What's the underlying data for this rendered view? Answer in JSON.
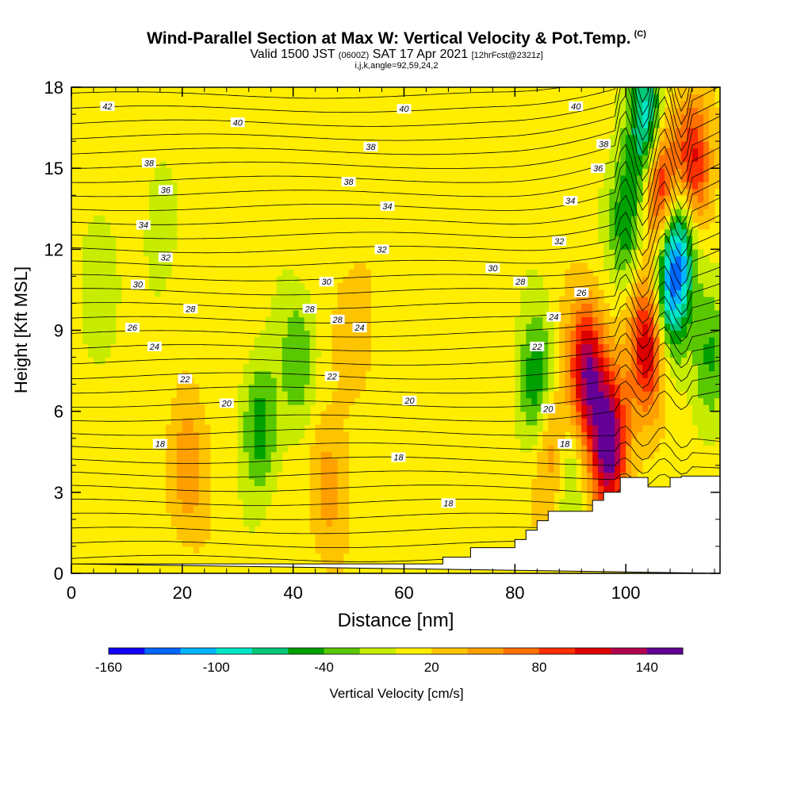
{
  "titles": {
    "main": "Wind-Parallel Section at Max W: Vertical Velocity & Pot.Temp.",
    "main_mark": "(C)",
    "valid_a": "Valid 1500 JST",
    "valid_b": "(0600Z)",
    "valid_c": "SAT 17 Apr 2021",
    "valid_d": "[12hrFcst@2321z]",
    "params": "i,j,k,angle=92,59,24,2"
  },
  "chart_data": {
    "type": "heatmap",
    "xlabel": "Distance [nm]",
    "ylabel": "Height [Kft MSL]",
    "xlim": [
      0,
      117
    ],
    "ylim": [
      0,
      18
    ],
    "x_ticks": [
      "0",
      "20",
      "40",
      "60",
      "80",
      "100"
    ],
    "y_ticks": [
      "0",
      "3",
      "6",
      "9",
      "12",
      "15",
      "18"
    ],
    "x_tick_values": [
      0,
      20,
      40,
      60,
      80,
      100
    ],
    "y_tick_values": [
      0,
      3,
      6,
      9,
      12,
      15,
      18
    ],
    "colorbar": {
      "label": "Vertical Velocity [cm/s]",
      "tick_labels": [
        "-160",
        "-100",
        "-40",
        "20",
        "80",
        "140"
      ],
      "tick_values": [
        -160,
        -100,
        -40,
        20,
        80,
        140
      ],
      "range": [
        -160,
        160
      ],
      "colors": [
        "#1200ff",
        "#0066ff",
        "#00b4ff",
        "#00e6c8",
        "#00c878",
        "#00a000",
        "#5ac800",
        "#c8ec00",
        "#ffee00",
        "#ffc400",
        "#ffa000",
        "#ff7000",
        "#ff3000",
        "#dc0000",
        "#b40050",
        "#640096"
      ]
    },
    "background_value": 10,
    "updraft_cores": [
      {
        "x": 21,
        "y": 3.8,
        "value": 50
      },
      {
        "x": 46,
        "y": 3.2,
        "value": 40
      },
      {
        "x": 50,
        "y": 9.0,
        "value": 30
      },
      {
        "x": 87,
        "y": 4.5,
        "value": 80
      },
      {
        "x": 93,
        "y": 7.5,
        "value": 130
      },
      {
        "x": 97,
        "y": 4.8,
        "value": 150
      },
      {
        "x": 104,
        "y": 8.5,
        "value": 120
      },
      {
        "x": 106,
        "y": 14.5,
        "value": 140
      },
      {
        "x": 112,
        "y": 15.0,
        "value": 110
      }
    ],
    "downdraft_cores": [
      {
        "x": 6,
        "y": 10.5,
        "value": -30
      },
      {
        "x": 17,
        "y": 13.0,
        "value": -20
      },
      {
        "x": 41,
        "y": 8.0,
        "value": -50
      },
      {
        "x": 34,
        "y": 5.4,
        "value": -60
      },
      {
        "x": 84,
        "y": 7.0,
        "value": -70
      },
      {
        "x": 89,
        "y": 4.0,
        "value": -60
      },
      {
        "x": 100,
        "y": 13.0,
        "value": -70
      },
      {
        "x": 104,
        "y": 16.5,
        "value": -130
      },
      {
        "x": 108,
        "y": 10.5,
        "value": -110
      },
      {
        "x": 110,
        "y": 12.5,
        "value": -100
      },
      {
        "x": 115,
        "y": 8.0,
        "value": -50
      }
    ],
    "theta_contours_C": [
      18,
      20,
      22,
      24,
      26,
      28,
      30,
      32,
      34,
      36,
      38,
      40,
      42
    ],
    "contour_labels": [
      {
        "text": "42",
        "x": 6.5,
        "y": 17.3
      },
      {
        "text": "40",
        "x": 30,
        "y": 16.7
      },
      {
        "text": "40",
        "x": 60,
        "y": 17.2
      },
      {
        "text": "40",
        "x": 91,
        "y": 17.3
      },
      {
        "text": "38",
        "x": 14,
        "y": 15.2
      },
      {
        "text": "38",
        "x": 54,
        "y": 15.8
      },
      {
        "text": "38",
        "x": 96,
        "y": 15.9
      },
      {
        "text": "38",
        "x": 50,
        "y": 14.5
      },
      {
        "text": "36",
        "x": 17,
        "y": 14.2
      },
      {
        "text": "36",
        "x": 95,
        "y": 15.0
      },
      {
        "text": "34",
        "x": 13,
        "y": 12.9
      },
      {
        "text": "34",
        "x": 57,
        "y": 13.6
      },
      {
        "text": "34",
        "x": 90,
        "y": 13.8
      },
      {
        "text": "32",
        "x": 17,
        "y": 11.7
      },
      {
        "text": "32",
        "x": 56,
        "y": 12.0
      },
      {
        "text": "32",
        "x": 88,
        "y": 12.3
      },
      {
        "text": "30",
        "x": 12,
        "y": 10.7
      },
      {
        "text": "30",
        "x": 46,
        "y": 10.8
      },
      {
        "text": "30",
        "x": 76,
        "y": 11.3
      },
      {
        "text": "28",
        "x": 21.5,
        "y": 9.8
      },
      {
        "text": "28",
        "x": 43,
        "y": 9.8
      },
      {
        "text": "28",
        "x": 48,
        "y": 9.4
      },
      {
        "text": "28",
        "x": 81,
        "y": 10.8
      },
      {
        "text": "26",
        "x": 11,
        "y": 9.1
      },
      {
        "text": "26",
        "x": 92,
        "y": 10.4
      },
      {
        "text": "24",
        "x": 15,
        "y": 8.4
      },
      {
        "text": "24",
        "x": 52,
        "y": 9.1
      },
      {
        "text": "24",
        "x": 87,
        "y": 9.5
      },
      {
        "text": "22",
        "x": 20.5,
        "y": 7.2
      },
      {
        "text": "22",
        "x": 47,
        "y": 7.3
      },
      {
        "text": "22",
        "x": 84,
        "y": 8.4
      },
      {
        "text": "20",
        "x": 28,
        "y": 6.3
      },
      {
        "text": "20",
        "x": 61,
        "y": 6.4
      },
      {
        "text": "20",
        "x": 86,
        "y": 6.1
      },
      {
        "text": "18",
        "x": 16,
        "y": 4.8
      },
      {
        "text": "18",
        "x": 59,
        "y": 4.3
      },
      {
        "text": "18",
        "x": 89,
        "y": 4.8
      },
      {
        "text": "18",
        "x": 68,
        "y": 2.6
      }
    ],
    "terrain": [
      [
        0,
        0.35
      ],
      [
        67,
        0.35
      ],
      [
        67,
        0.6
      ],
      [
        72,
        0.6
      ],
      [
        72,
        0.95
      ],
      [
        80,
        0.95
      ],
      [
        80,
        1.25
      ],
      [
        82,
        1.25
      ],
      [
        82,
        1.6
      ],
      [
        84,
        1.6
      ],
      [
        84,
        1.95
      ],
      [
        86,
        1.95
      ],
      [
        86,
        2.3
      ],
      [
        94,
        2.3
      ],
      [
        94,
        2.7
      ],
      [
        96,
        2.7
      ],
      [
        96,
        3.0
      ],
      [
        99,
        3.0
      ],
      [
        99,
        3.55
      ],
      [
        104,
        3.55
      ],
      [
        104,
        3.2
      ],
      [
        108,
        3.2
      ],
      [
        108,
        3.55
      ],
      [
        110,
        3.55
      ],
      [
        110,
        3.6
      ],
      [
        117,
        3.6
      ],
      [
        117,
        0
      ]
    ],
    "grid": false,
    "legend": "bottom colorbar"
  }
}
